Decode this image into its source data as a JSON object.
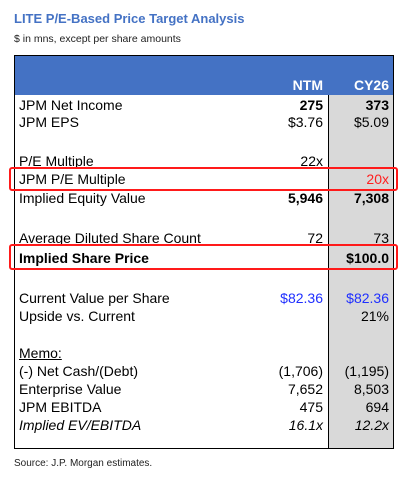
{
  "title": "LITE P/E-Based Price Target Analysis",
  "subtitle": "$ in mns, except per share amounts",
  "columns": {
    "c1": "NTM",
    "c2": "CY26"
  },
  "rows": [
    {
      "label": "JPM Net Income",
      "c1": "275",
      "c2": "373"
    },
    {
      "label": "JPM EPS",
      "c1": "$3.76",
      "c2": "$5.09"
    },
    {
      "label": "P/E Multiple",
      "c1": "22x",
      "c2": ""
    },
    {
      "label": "JPM P/E Multiple",
      "c1": "",
      "c2": "20x"
    },
    {
      "label": "Implied Equity Value",
      "c1": "5,946",
      "c2": "7,308"
    },
    {
      "label": "Average Diluted Share Count",
      "c1": "72",
      "c2": "73"
    },
    {
      "label": "Implied Share Price",
      "c1": "",
      "c2": "$100.0"
    },
    {
      "label": "Current Value per Share",
      "c1": "$82.36",
      "c2": "$82.36"
    },
    {
      "label": "Upside vs. Current",
      "c1": "",
      "c2": "21%"
    },
    {
      "label": "Memo:",
      "c1": "",
      "c2": ""
    },
    {
      "label": "(-) Net Cash/(Debt)",
      "c1": "(1,706)",
      "c2": "(1,195)"
    },
    {
      "label": "Enterprise Value",
      "c1": "7,652",
      "c2": "8,503"
    },
    {
      "label": "JPM EBITDA",
      "c1": "475",
      "c2": "694"
    },
    {
      "label": "Implied EV/EBITDA",
      "c1": "16.1x",
      "c2": "12.2x"
    }
  ],
  "source": "Source: J.P. Morgan estimates.",
  "colors": {
    "header": "#4472c4",
    "shade": "#d9d9d9",
    "highlight": "#ff1a1a",
    "input_blue": "#1f2fff",
    "input_red": "#ff2020"
  }
}
